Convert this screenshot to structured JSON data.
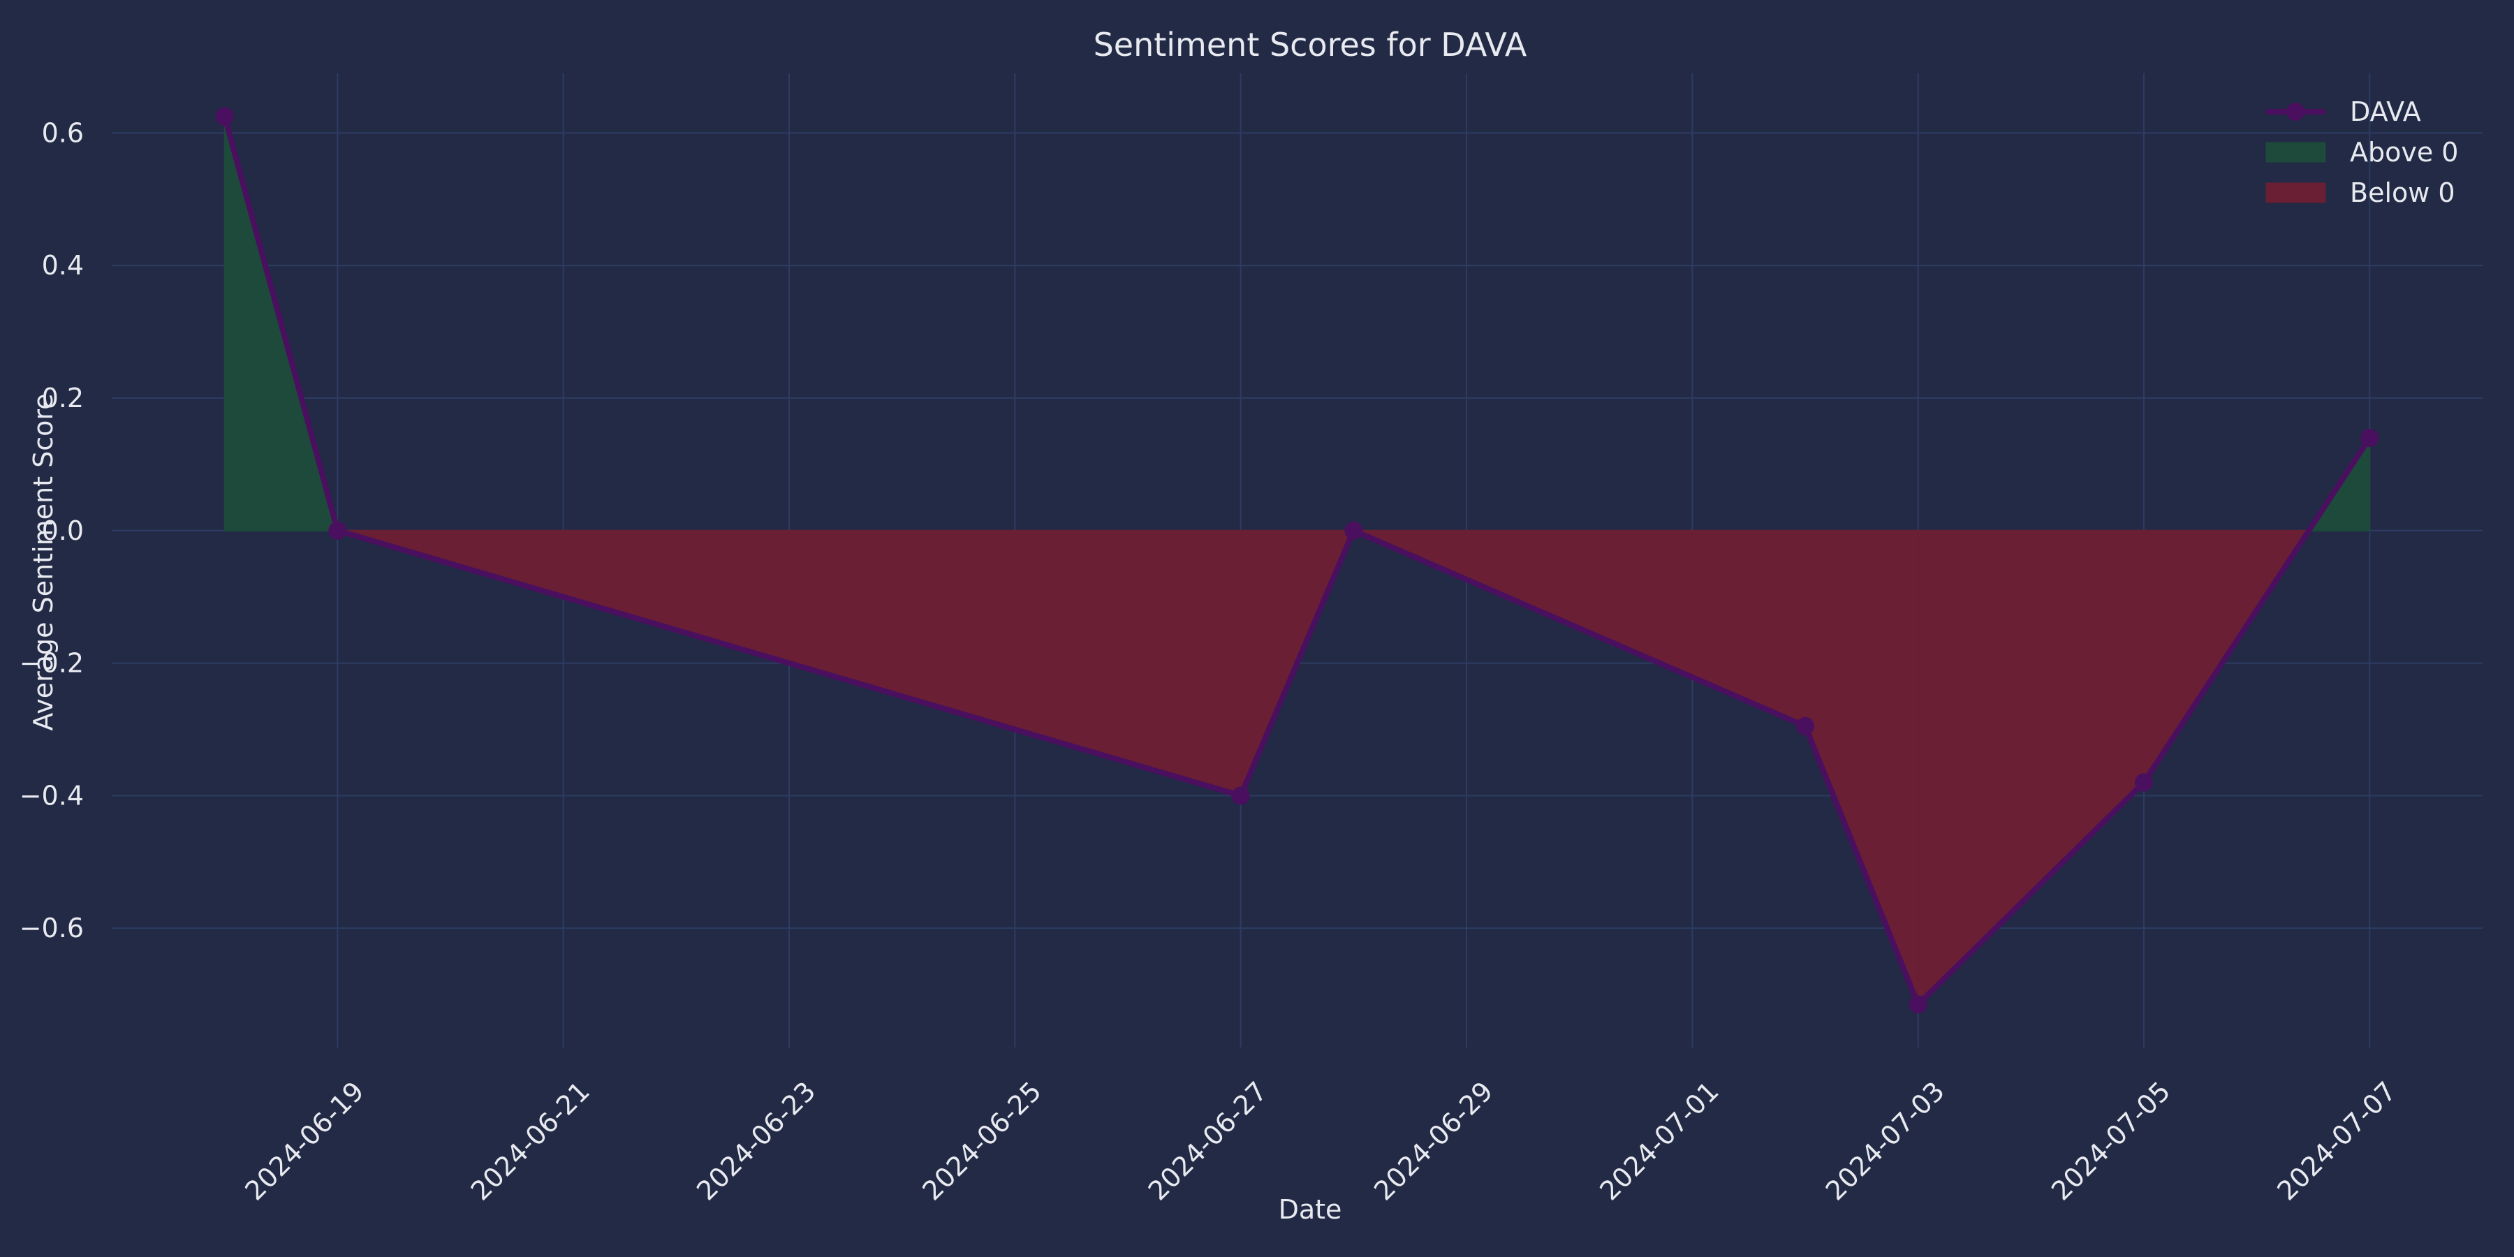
{
  "chart_data": {
    "type": "line",
    "title": "Sentiment Scores for DAVA",
    "xlabel": "Date",
    "ylabel": "Average Sentiment Score",
    "x": [
      "2024-06-18",
      "2024-06-19",
      "2024-06-27",
      "2024-06-28",
      "2024-07-02",
      "2024-07-03",
      "2024-07-05",
      "2024-07-07"
    ],
    "series": [
      {
        "name": "DAVA",
        "values": [
          0.625,
          0.0,
          -0.4,
          0.0,
          -0.295,
          -0.715,
          -0.38,
          0.14
        ]
      }
    ],
    "fills": [
      {
        "name": "Above 0",
        "color": "#1d4a3a"
      },
      {
        "name": "Below 0",
        "color": "#6a1f35"
      }
    ],
    "xticks": [
      "2024-06-19",
      "2024-06-21",
      "2024-06-23",
      "2024-06-25",
      "2024-06-27",
      "2024-06-29",
      "2024-07-01",
      "2024-07-03",
      "2024-07-05",
      "2024-07-07"
    ],
    "yticks": [
      0.6,
      0.4,
      0.2,
      0.0,
      -0.2,
      -0.4,
      -0.6
    ],
    "ylim": [
      -0.78,
      0.69
    ],
    "xlim": [
      "2024-06-17",
      "2024-07-08"
    ],
    "grid": true,
    "legend_position": "top-right",
    "colors": {
      "background": "#222a45",
      "line": "#4a0f5e",
      "grid": "#2e3c63",
      "text": "#e8eaf0"
    }
  }
}
